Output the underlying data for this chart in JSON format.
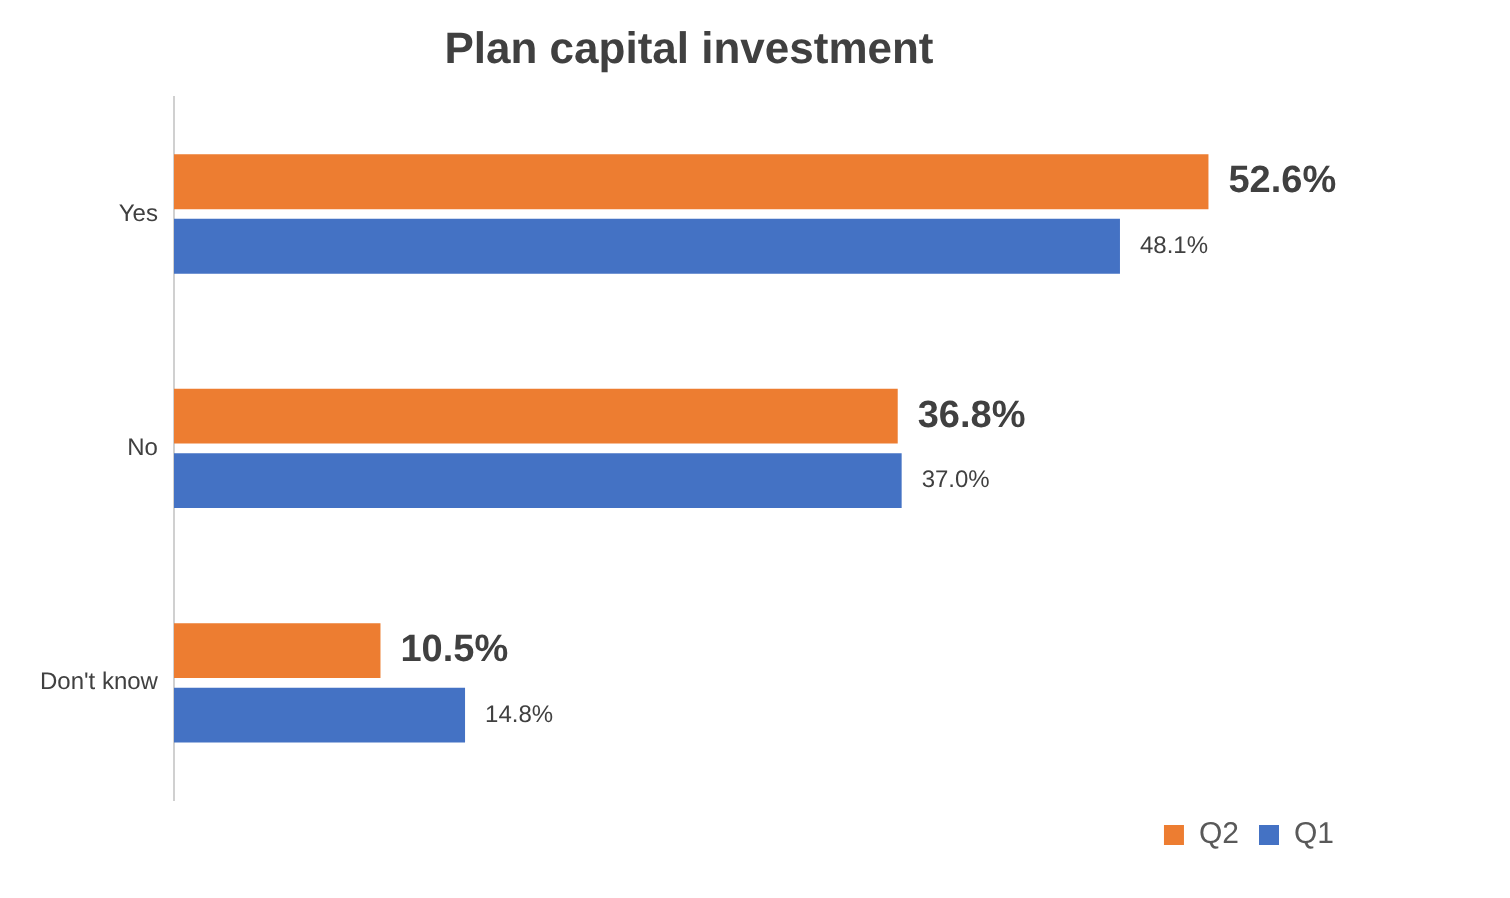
{
  "chart_data": {
    "type": "bar",
    "orientation": "horizontal",
    "title": "Plan capital investment",
    "categories": [
      "Yes",
      "No",
      "Don't know"
    ],
    "series": [
      {
        "name": "Q2",
        "color": "#ed7d31",
        "values": [
          52.6,
          36.8,
          10.5
        ],
        "value_labels": [
          "52.6%",
          "36.8%",
          "10.5%"
        ]
      },
      {
        "name": "Q1",
        "color": "#4472c4",
        "values": [
          48.1,
          37.0,
          14.8
        ],
        "value_labels": [
          "48.1%",
          "37.0%",
          "14.8%"
        ]
      }
    ],
    "grid": false,
    "legend": "bottom right"
  }
}
